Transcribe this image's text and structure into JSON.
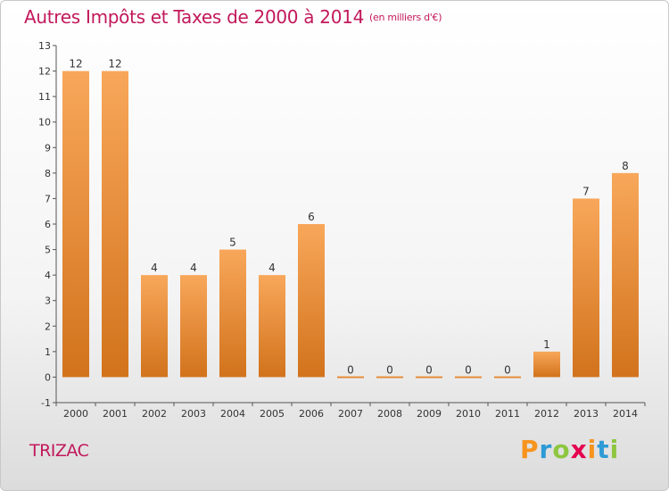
{
  "header": {
    "title": "Autres Impôts et Taxes de 2000 à 2014",
    "unit": "(en milliers d'€)"
  },
  "footer": {
    "commune": "TRIZAC",
    "logo_letters": [
      "P",
      "r",
      "o",
      "x",
      "i",
      "t",
      "i"
    ],
    "logo_colors": [
      "#f7941d",
      "#2e9ad6",
      "#8dc63f",
      "#e5004f",
      "#f7941d",
      "#2e9ad6",
      "#8dc63f"
    ]
  },
  "chart_data": {
    "type": "bar",
    "title": "Autres Impôts et Taxes de 2000 à 2014",
    "subtitle": "(en milliers d'€)",
    "xlabel": "",
    "ylabel": "",
    "categories": [
      "2000",
      "2001",
      "2002",
      "2003",
      "2004",
      "2005",
      "2006",
      "2007",
      "2008",
      "2009",
      "2010",
      "2011",
      "2012",
      "2013",
      "2014"
    ],
    "values": [
      12,
      12,
      4,
      4,
      5,
      4,
      6,
      0,
      0,
      0,
      0,
      0,
      1,
      7,
      8
    ],
    "ylim": [
      -1,
      13
    ],
    "yticks": [
      -1,
      0,
      1,
      2,
      3,
      4,
      5,
      6,
      7,
      8,
      9,
      10,
      11,
      12,
      13
    ],
    "grid": false,
    "bar_color_light": "#f8a75a",
    "bar_color_dark": "#d2731c"
  }
}
